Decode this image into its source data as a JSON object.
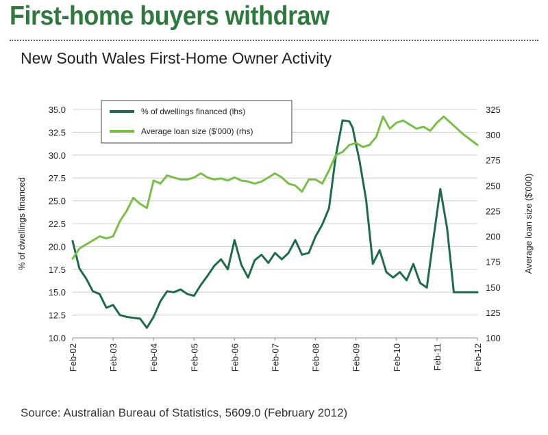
{
  "headline": "First-home buyers withdraw",
  "subtitle": "New South Wales First-Home Owner Activity",
  "source": "Source: Australian Bureau of Statistics, 5609.0 (February 2012)",
  "colors": {
    "headline": "#2e7a3c",
    "dwellings": "#1e6b4a",
    "loan": "#76c043",
    "grid": "#cccccc"
  },
  "chart_data": {
    "type": "line",
    "x_tick_labels": [
      "Feb-02",
      "Feb-03",
      "Feb-04",
      "Feb-05",
      "Feb-06",
      "Feb-07",
      "Feb-08",
      "Feb-09",
      "Feb-10",
      "Feb-11",
      "Feb-12"
    ],
    "y_left": {
      "label": "% of dwellings financed",
      "ylim": [
        10.0,
        35.0
      ],
      "ticks": [
        "10.0",
        "12.5",
        "15.0",
        "17.5",
        "20.0",
        "22.5",
        "25.0",
        "27.5",
        "30.0",
        "32.5",
        "35.0"
      ]
    },
    "y_right": {
      "label": "Average loan size ($'000)",
      "ylim": [
        100,
        325
      ],
      "ticks": [
        "100",
        "125",
        "150",
        "175",
        "200",
        "225",
        "250",
        "275",
        "300",
        "325"
      ]
    },
    "grid": true,
    "legend_position": "top-left",
    "series": [
      {
        "name": "% of dwellings financed (lhs)",
        "axis": "left",
        "x": [
          "2002-02",
          "2002-04",
          "2002-06",
          "2002-08",
          "2002-10",
          "2002-12",
          "2003-02",
          "2003-04",
          "2003-06",
          "2003-08",
          "2003-10",
          "2003-12",
          "2004-02",
          "2004-04",
          "2004-06",
          "2004-08",
          "2004-10",
          "2004-12",
          "2005-02",
          "2005-04",
          "2005-06",
          "2005-08",
          "2005-10",
          "2005-12",
          "2006-02",
          "2006-04",
          "2006-06",
          "2006-08",
          "2006-10",
          "2006-12",
          "2007-02",
          "2007-04",
          "2007-06",
          "2007-08",
          "2007-10",
          "2007-12",
          "2008-02",
          "2008-04",
          "2008-06",
          "2008-08",
          "2008-10",
          "2008-12",
          "2009-01",
          "2009-02",
          "2009-03",
          "2009-05",
          "2009-07",
          "2009-09",
          "2009-11",
          "2010-01",
          "2010-03",
          "2010-05",
          "2010-07",
          "2010-09",
          "2010-11",
          "2011-01",
          "2011-03",
          "2011-05",
          "2011-07",
          "2011-09",
          "2011-11",
          "2012-01",
          "2012-02"
        ],
        "values": [
          20.6,
          17.6,
          16.5,
          15.1,
          14.8,
          13.3,
          13.6,
          12.5,
          12.3,
          12.2,
          12.1,
          11.1,
          12.3,
          14.0,
          15.1,
          15.0,
          15.3,
          14.8,
          14.6,
          15.8,
          16.8,
          17.9,
          18.6,
          17.5,
          20.7,
          18.0,
          16.6,
          18.5,
          19.1,
          18.2,
          19.3,
          18.6,
          19.3,
          20.7,
          19.1,
          19.3,
          21.1,
          22.4,
          24.2,
          29.9,
          33.8,
          33.7,
          33.0,
          31.2,
          29.5,
          25.1,
          18.1,
          19.6,
          17.2,
          16.6,
          17.2,
          16.3,
          18.1,
          16.0,
          15.5,
          21.0,
          26.3,
          22.0,
          15.0,
          15.0,
          15.0,
          15.0,
          15.0
        ],
        "note": ""
      },
      {
        "name": "Average loan size ($'000) (rhs)",
        "axis": "right",
        "x": [
          "2002-02",
          "2002-04",
          "2002-06",
          "2002-08",
          "2002-10",
          "2002-12",
          "2003-02",
          "2003-04",
          "2003-06",
          "2003-08",
          "2003-10",
          "2003-12",
          "2004-02",
          "2004-04",
          "2004-06",
          "2004-08",
          "2004-10",
          "2004-12",
          "2005-02",
          "2005-04",
          "2005-06",
          "2005-08",
          "2005-10",
          "2005-12",
          "2006-02",
          "2006-04",
          "2006-06",
          "2006-08",
          "2006-10",
          "2006-12",
          "2007-02",
          "2007-04",
          "2007-06",
          "2007-08",
          "2007-10",
          "2007-12",
          "2008-02",
          "2008-04",
          "2008-06",
          "2008-08",
          "2008-10",
          "2008-12",
          "2009-02",
          "2009-04",
          "2009-06",
          "2009-08",
          "2009-10",
          "2009-12",
          "2010-02",
          "2010-04",
          "2010-06",
          "2010-08",
          "2010-10",
          "2010-12",
          "2011-02",
          "2011-04",
          "2011-06",
          "2011-08",
          "2011-10",
          "2011-12",
          "2012-02"
        ],
        "values": [
          178,
          188,
          192,
          196,
          200,
          198,
          200,
          215,
          225,
          238,
          232,
          228,
          255,
          252,
          260,
          258,
          256,
          256,
          258,
          262,
          258,
          256,
          257,
          255,
          258,
          255,
          254,
          252,
          254,
          258,
          262,
          258,
          252,
          250,
          244,
          256,
          256,
          252,
          265,
          280,
          283,
          290,
          292,
          288,
          290,
          298,
          318,
          306,
          312,
          314,
          310,
          306,
          308,
          304,
          312,
          318,
          312,
          306,
          300,
          295,
          290
        ],
        "note": ""
      }
    ]
  }
}
